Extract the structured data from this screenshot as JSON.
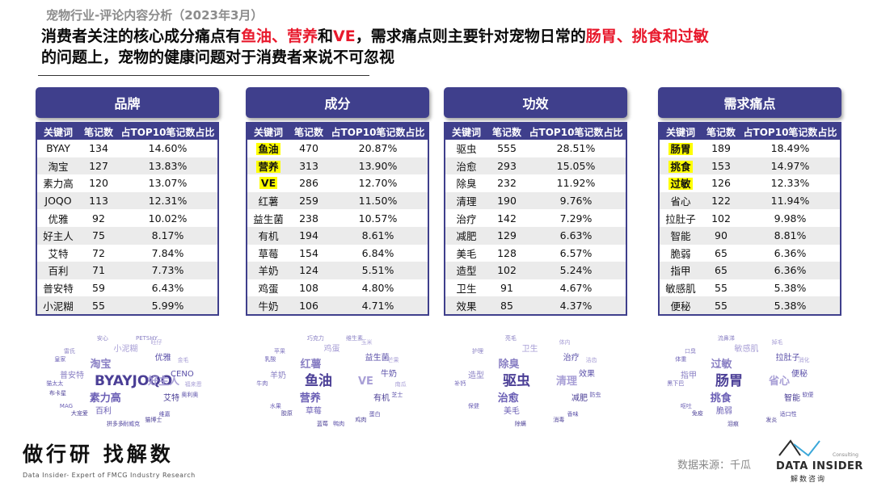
{
  "supertitle": "宠物行业-评论内容分析（2023年3月）",
  "headline": {
    "p1": "消费者关注的核心成分痛点有",
    "r1": "鱼油、营养",
    "p2": "和",
    "r2": "VE",
    "p3": "，需求痛点则主要针对宠物日常的",
    "r3": "肠胃、挑食和过敏",
    "p4": "的问题上，宠物的健康问题对于消费者来说不可忽视"
  },
  "column_headers": {
    "keyword": "关键词",
    "count": "笔记数",
    "share": "占TOP10笔记数占比"
  },
  "panels": [
    {
      "title": "品牌",
      "rows": [
        {
          "k": "BYAY",
          "n": "134",
          "p": "14.60%"
        },
        {
          "k": "淘宝",
          "n": "127",
          "p": "13.83%"
        },
        {
          "k": "素力高",
          "n": "120",
          "p": "13.07%"
        },
        {
          "k": "JOQO",
          "n": "113",
          "p": "12.31%"
        },
        {
          "k": "优雅",
          "n": "92",
          "p": "10.02%"
        },
        {
          "k": "好主人",
          "n": "75",
          "p": "8.17%"
        },
        {
          "k": "艾特",
          "n": "72",
          "p": "7.84%"
        },
        {
          "k": "百利",
          "n": "71",
          "p": "7.73%"
        },
        {
          "k": "普安特",
          "n": "59",
          "p": "6.43%"
        },
        {
          "k": "小泥糊",
          "n": "55",
          "p": "5.99%"
        }
      ]
    },
    {
      "title": "成分",
      "rows": [
        {
          "k": "鱼油",
          "n": "470",
          "p": "20.87%",
          "hl": true
        },
        {
          "k": "营养",
          "n": "313",
          "p": "13.90%",
          "hl": true
        },
        {
          "k": "VE",
          "n": "286",
          "p": "12.70%",
          "hl": true
        },
        {
          "k": "红薯",
          "n": "259",
          "p": "11.50%"
        },
        {
          "k": "益生菌",
          "n": "238",
          "p": "10.57%"
        },
        {
          "k": "有机",
          "n": "194",
          "p": "8.61%"
        },
        {
          "k": "草莓",
          "n": "154",
          "p": "6.84%"
        },
        {
          "k": "羊奶",
          "n": "124",
          "p": "5.51%"
        },
        {
          "k": "鸡蛋",
          "n": "108",
          "p": "4.80%"
        },
        {
          "k": "牛奶",
          "n": "106",
          "p": "4.71%"
        }
      ]
    },
    {
      "title": "功效",
      "rows": [
        {
          "k": "驱虫",
          "n": "555",
          "p": "28.51%"
        },
        {
          "k": "治愈",
          "n": "293",
          "p": "15.05%"
        },
        {
          "k": "除臭",
          "n": "232",
          "p": "11.92%"
        },
        {
          "k": "清理",
          "n": "190",
          "p": "9.76%"
        },
        {
          "k": "治疗",
          "n": "142",
          "p": "7.29%"
        },
        {
          "k": "减肥",
          "n": "129",
          "p": "6.63%"
        },
        {
          "k": "美毛",
          "n": "128",
          "p": "6.57%"
        },
        {
          "k": "造型",
          "n": "102",
          "p": "5.24%"
        },
        {
          "k": "卫生",
          "n": "91",
          "p": "4.67%"
        },
        {
          "k": "效果",
          "n": "85",
          "p": "4.37%"
        }
      ]
    },
    {
      "title": "需求痛点",
      "rows": [
        {
          "k": "肠胃",
          "n": "189",
          "p": "18.49%",
          "hl": true
        },
        {
          "k": "挑食",
          "n": "153",
          "p": "14.97%",
          "hl": true
        },
        {
          "k": "过敏",
          "n": "126",
          "p": "12.33%",
          "hl": true
        },
        {
          "k": "省心",
          "n": "122",
          "p": "11.94%"
        },
        {
          "k": "拉肚子",
          "n": "102",
          "p": "9.98%"
        },
        {
          "k": "智能",
          "n": "90",
          "p": "8.81%"
        },
        {
          "k": "脆弱",
          "n": "65",
          "p": "6.36%"
        },
        {
          "k": "指甲",
          "n": "65",
          "p": "6.36%"
        },
        {
          "k": "敏感肌",
          "n": "55",
          "p": "5.38%"
        },
        {
          "k": "便秘",
          "n": "55",
          "p": "5.38%"
        }
      ]
    }
  ],
  "clouds": [
    {
      "words": [
        "BYAYJOQO",
        "素力高",
        "淘宝",
        "好主人",
        "优雅",
        "艾特",
        "百利",
        "普安特",
        "小泥糊",
        "CENO",
        "猫博士",
        "MAG",
        "雷氏",
        "旺仔",
        "奥利奥",
        "拼多多",
        "猫太太",
        "安心",
        "金毛",
        "维嘉",
        "大宠爱",
        "皇家",
        "PETSHY",
        "福来恩",
        "耐威克",
        "布卡星"
      ]
    },
    {
      "words": [
        "鱼油",
        "营养",
        "红薯",
        "VE",
        "益生菌",
        "有机",
        "草莓",
        "羊奶",
        "鸡蛋",
        "牛奶",
        "鸡肉",
        "水果",
        "苹果",
        "玉米",
        "芝士",
        "蓝莓",
        "牛肉",
        "巧克力",
        "芒果",
        "蛋白",
        "胶原",
        "乳酸",
        "维生素",
        "南瓜",
        "鸭肉"
      ]
    },
    {
      "words": [
        "驱虫",
        "治愈",
        "除臭",
        "清理",
        "治疗",
        "减肥",
        "美毛",
        "造型",
        "卫生",
        "效果",
        "消毒",
        "保健",
        "护理",
        "体内",
        "防虫",
        "除螨",
        "补钙",
        "亮毛",
        "洁齿",
        "香味"
      ]
    },
    {
      "words": [
        "肠胃",
        "挑食",
        "过敏",
        "省心",
        "拉肚子",
        "智能",
        "脆弱",
        "指甲",
        "敏感肌",
        "便秘",
        "发炎",
        "呕吐",
        "口臭",
        "掉毛",
        "软便",
        "泪痕",
        "黑下巴",
        "流鼻涕",
        "消化",
        "适口性",
        "免疫",
        "体重"
      ]
    }
  ],
  "footer": {
    "logo_cn": "做行研 找解数",
    "logo_en": "Data Insider- Expert of FMCG Industry Research",
    "source": "数据来源：千瓜",
    "brand_consult": "Consulting",
    "brand_name": "DATA INSIDER",
    "brand_sub": "解数咨询"
  }
}
